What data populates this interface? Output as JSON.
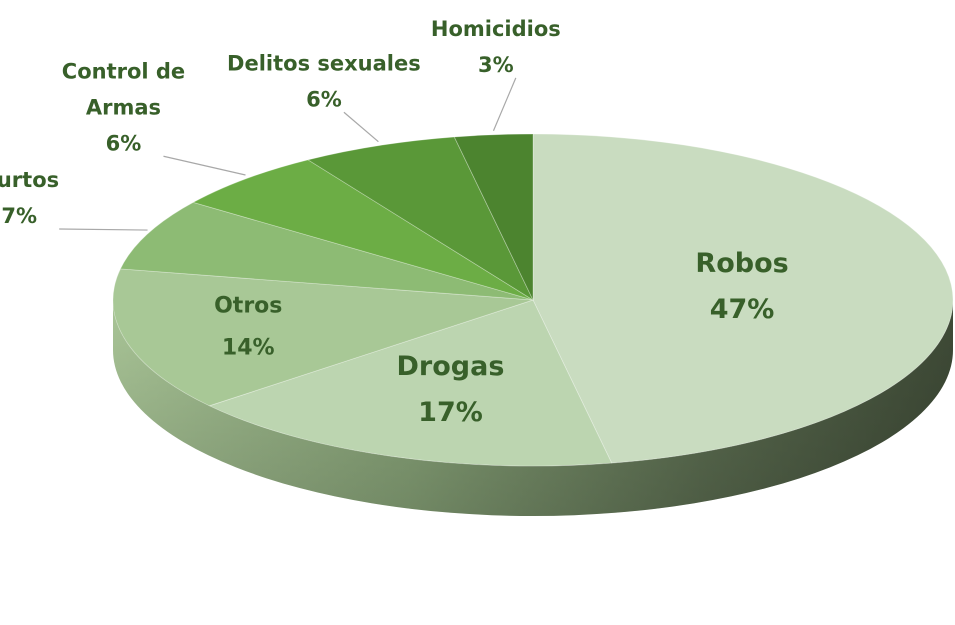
{
  "chart_data": {
    "type": "pie",
    "style": "3d",
    "title": "",
    "slices": [
      {
        "name": "Robos",
        "value": 47,
        "label": "47%",
        "color": "#c9dcc0",
        "text_color": "#38602a"
      },
      {
        "name": "Drogas",
        "value": 17,
        "label": "17%",
        "color": "#bcd5b0",
        "text_color": "#38602a"
      },
      {
        "name": "Otros",
        "value": 14,
        "label": "14%",
        "color": "#a8c896",
        "text_color": "#38602a"
      },
      {
        "name": "Hurtos",
        "value": 7,
        "label": "7%",
        "color": "#8dbb74",
        "text_color": "#38602a"
      },
      {
        "name": "Control de Armas",
        "value": 6,
        "label": "6%",
        "color": "#6cad45",
        "text_color": "#38602a"
      },
      {
        "name": "Delitos sexuales",
        "value": 6,
        "label": "6%",
        "color": "#5a9838",
        "text_color": "#38602a"
      },
      {
        "name": "Homicidios",
        "value": 3,
        "label": "3%",
        "color": "#4c842f",
        "text_color": "#38602a"
      }
    ]
  }
}
